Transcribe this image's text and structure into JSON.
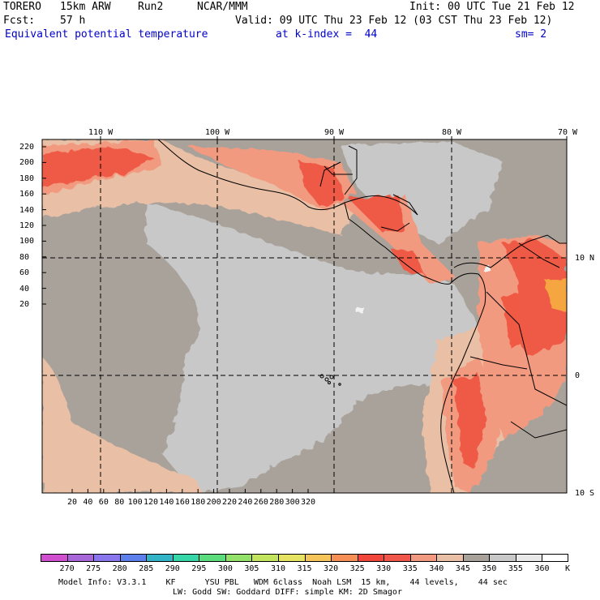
{
  "header": {
    "model": "TORERO",
    "resolution": "15km ARW",
    "run": "Run2",
    "org": "NCAR/MMM",
    "init": "Init: 00 UTC Tue 21 Feb 12",
    "fcst_label": "Fcst:",
    "fcst_hours": "57 h",
    "valid": "Valid: 09 UTC Thu 23 Feb 12 (03 CST Thu 23 Feb 12)",
    "field": "Equivalent potential temperature",
    "level": "at k-index =  44",
    "smooth": "sm= 2"
  },
  "map": {
    "lon_labels": [
      "110 W",
      "100 W",
      "90 W",
      "80 W",
      "70 W"
    ],
    "lat_labels_right": [
      "10 N",
      "0",
      "10 S"
    ],
    "y_ticks": [
      "220",
      "200",
      "180",
      "160",
      "140",
      "120",
      "100",
      "80",
      "60",
      "40",
      "20"
    ],
    "x_ticks": [
      "20",
      "40",
      "60",
      "80",
      "100",
      "120",
      "140",
      "160",
      "180",
      "200",
      "220",
      "240",
      "260",
      "280",
      "300",
      "320"
    ],
    "colors": {
      "bg": "#a9a29b",
      "cool": "#c8c8c8",
      "pale": "#e9bfa5",
      "salmon": "#f29a80",
      "red": "#ee5a45",
      "orange": "#f5a640",
      "white": "#f2f2f2"
    }
  },
  "colorbar": {
    "unit": "K",
    "labels": [
      "270",
      "275",
      "280",
      "285",
      "290",
      "295",
      "300",
      "305",
      "310",
      "315",
      "320",
      "325",
      "330",
      "335",
      "340",
      "345",
      "350",
      "355",
      "360"
    ],
    "colors": [
      "#cf4fcf",
      "#a767d9",
      "#8a76ec",
      "#5e80ec",
      "#33b3c6",
      "#36d6a8",
      "#5ddc7e",
      "#94e16a",
      "#c3e45e",
      "#e6e362",
      "#f5c45a",
      "#f58f55",
      "#f0463c",
      "#f0574a",
      "#f29a80",
      "#e9bfa5",
      "#a9a29b",
      "#c8c8c8",
      "#e8e8e8",
      "#ffffff"
    ]
  },
  "footer": {
    "line1": "Model Info: V3.3.1    KF      YSU PBL   WDM 6class  Noah LSM  15 km,    44 levels,    44 sec",
    "line2": "LW: Godd SW: Goddard DIFF: simple KM: 2D Smagor"
  }
}
